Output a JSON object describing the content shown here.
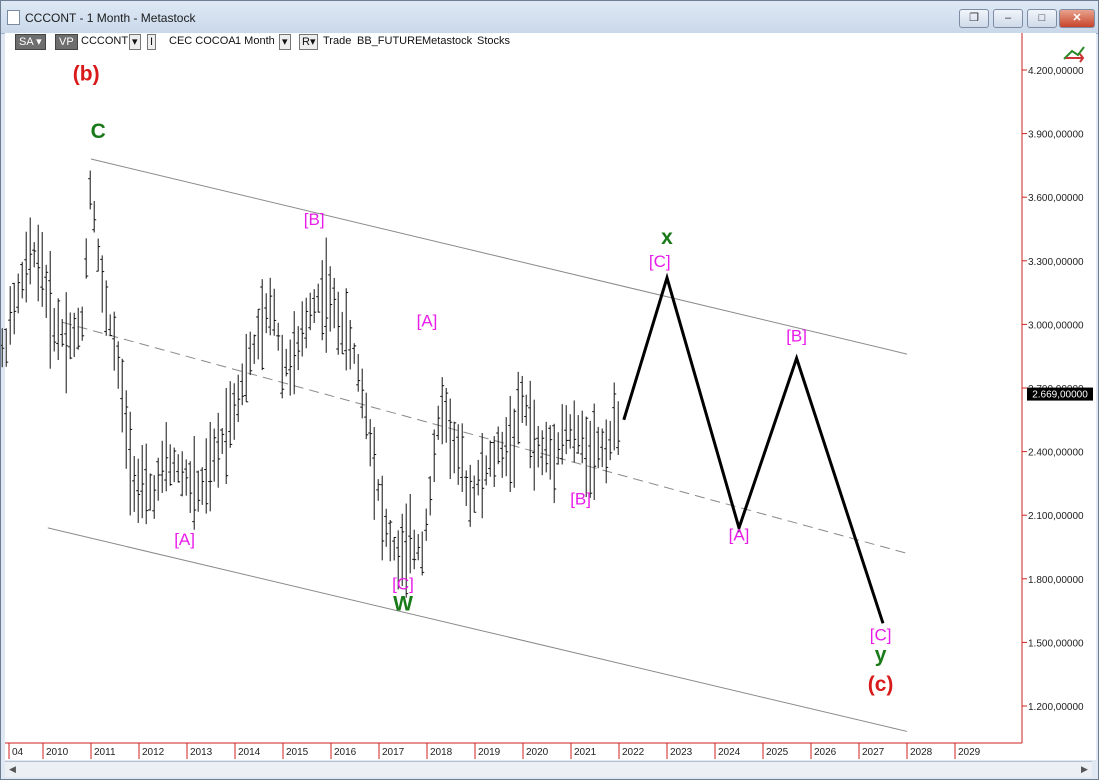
{
  "window": {
    "title": "CCCONT - 1 Month - Metastock",
    "buttons": {
      "restore": "❐",
      "minimize": "–",
      "maximize": "□",
      "close": "✕"
    }
  },
  "toolbar": {
    "sa": "SA",
    "vp": "VP",
    "symbol": "CCCONT",
    "i": "I",
    "name": "CEC COCOA",
    "period": "1 Month",
    "r": "R",
    "trade": "Trade",
    "bb": "BB_FUTURE",
    "metastock": "Metastock",
    "stocks": "Stocks"
  },
  "colors": {
    "magenta": "#e81ce8",
    "green": "#1a7a1a",
    "red": "#d81a1a",
    "price_axis": "#cc2222",
    "forecast": "#000000"
  },
  "chart_data": {
    "type": "ohlc",
    "y_axis": {
      "ticks": [
        4200000,
        3900000,
        3600000,
        3300000,
        3000000,
        2700000,
        2400000,
        2100000,
        1800000,
        1500000,
        1200000
      ],
      "tick_labels": [
        "4.200,00000",
        "3.900,00000",
        "3.600,00000",
        "3.300,00000",
        "3.000,00000",
        "2.700,00000",
        "2.400,00000",
        "2.100,00000",
        "1.800,00000",
        "1.500,00000",
        "1.200,00000"
      ],
      "range": [
        1000000,
        4500000
      ]
    },
    "last_price": {
      "value": 2669000,
      "label": "2.669,00000"
    },
    "x_axis": {
      "labels": [
        "04",
        "2010",
        "2011",
        "2012",
        "2013",
        "2014",
        "2015",
        "2016",
        "2017",
        "2018",
        "2019",
        "2020",
        "2021",
        "2022",
        "2023",
        "2024",
        "2025",
        "2026",
        "2027",
        "2028",
        "2029"
      ],
      "first_year": 2010
    },
    "price_path": [
      [
        2008.9,
        2700000
      ],
      [
        2009.2,
        2900000
      ],
      [
        2009.5,
        3150000
      ],
      [
        2009.8,
        3350000
      ],
      [
        2010.0,
        3250000
      ],
      [
        2010.2,
        3000000
      ],
      [
        2010.5,
        2950000
      ],
      [
        2010.8,
        2950000
      ],
      [
        2011.0,
        3700000
      ],
      [
        2011.2,
        3200000
      ],
      [
        2011.5,
        2900000
      ],
      [
        2011.8,
        2400000
      ],
      [
        2012.0,
        2200000
      ],
      [
        2012.3,
        2200000
      ],
      [
        2012.6,
        2350000
      ],
      [
        2012.9,
        2300000
      ],
      [
        2013.2,
        2200000
      ],
      [
        2013.4,
        2250000
      ],
      [
        2013.8,
        2500000
      ],
      [
        2014.1,
        2700000
      ],
      [
        2014.5,
        2950000
      ],
      [
        2014.8,
        3100000
      ],
      [
        2015.0,
        2800000
      ],
      [
        2015.3,
        2850000
      ],
      [
        2015.6,
        3100000
      ],
      [
        2015.9,
        3150000
      ],
      [
        2016.2,
        3000000
      ],
      [
        2016.5,
        2850000
      ],
      [
        2016.8,
        2500000
      ],
      [
        2017.1,
        2050000
      ],
      [
        2017.4,
        1900000
      ],
      [
        2017.7,
        1950000
      ],
      [
        2017.9,
        1950000
      ],
      [
        2018.1,
        2250000
      ],
      [
        2018.3,
        2650000
      ],
      [
        2018.6,
        2400000
      ],
      [
        2018.9,
        2200000
      ],
      [
        2019.2,
        2300000
      ],
      [
        2019.5,
        2400000
      ],
      [
        2019.8,
        2450000
      ],
      [
        2020.0,
        2650000
      ],
      [
        2020.3,
        2400000
      ],
      [
        2020.6,
        2400000
      ],
      [
        2020.9,
        2500000
      ],
      [
        2021.2,
        2450000
      ],
      [
        2021.5,
        2400000
      ],
      [
        2021.8,
        2450000
      ],
      [
        2022.0,
        2560000
      ]
    ],
    "forecast_path": [
      [
        2022.1,
        2550000
      ],
      [
        2023.0,
        3220000
      ],
      [
        2024.5,
        2040000
      ],
      [
        2025.7,
        2840000
      ],
      [
        2027.5,
        1590000
      ]
    ],
    "channel_lines": [
      {
        "style": "solid",
        "points": [
          [
            2011.0,
            3780000
          ],
          [
            2028.0,
            2860000
          ]
        ]
      },
      {
        "style": "dashed",
        "points": [
          [
            2010.4,
            3010000
          ],
          [
            2028.0,
            1920000
          ]
        ]
      },
      {
        "style": "solid",
        "points": [
          [
            2010.1,
            2040000
          ],
          [
            2028.0,
            1080000
          ]
        ]
      }
    ],
    "annotations": [
      {
        "text": "(b)",
        "x": 2010.9,
        "y": 4150000,
        "color": "red"
      },
      {
        "text": "C",
        "x": 2011.15,
        "y": 3880000,
        "color": "green"
      },
      {
        "text": "[B]",
        "x": 2015.65,
        "y": 3470000,
        "color": "magenta"
      },
      {
        "text": "[A]",
        "x": 2012.95,
        "y": 1960000,
        "color": "magenta"
      },
      {
        "text": "[A]",
        "x": 2018.0,
        "y": 2990000,
        "color": "magenta"
      },
      {
        "text": "[C]",
        "x": 2017.5,
        "y": 1750000,
        "color": "magenta"
      },
      {
        "text": "W",
        "x": 2017.5,
        "y": 1650000,
        "color": "green"
      },
      {
        "text": "[B]",
        "x": 2021.2,
        "y": 2150000,
        "color": "magenta"
      },
      {
        "text": "x",
        "x": 2023.0,
        "y": 3380000,
        "color": "green"
      },
      {
        "text": "[C]",
        "x": 2022.85,
        "y": 3270000,
        "color": "magenta"
      },
      {
        "text": "[A]",
        "x": 2024.5,
        "y": 1980000,
        "color": "magenta"
      },
      {
        "text": "[B]",
        "x": 2025.7,
        "y": 2920000,
        "color": "magenta"
      },
      {
        "text": "[C]",
        "x": 2027.45,
        "y": 1510000,
        "color": "magenta"
      },
      {
        "text": "y",
        "x": 2027.45,
        "y": 1410000,
        "color": "green"
      },
      {
        "text": "(c)",
        "x": 2027.45,
        "y": 1270000,
        "color": "red"
      }
    ]
  }
}
